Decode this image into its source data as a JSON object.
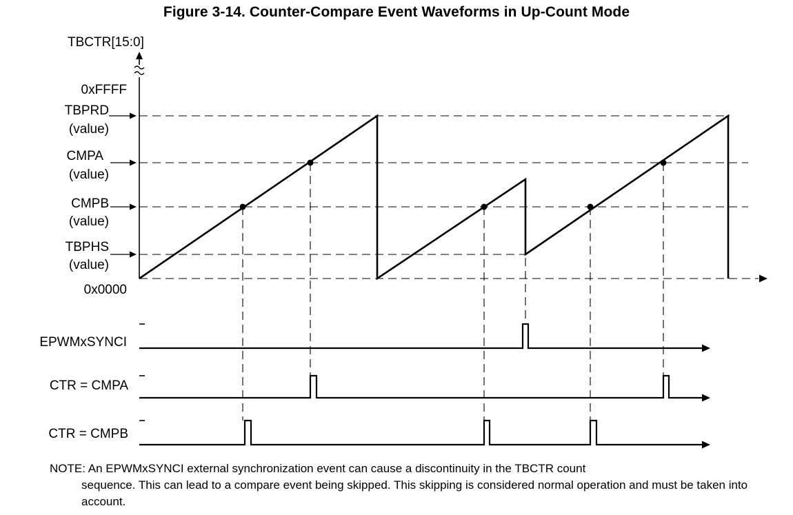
{
  "title": "Figure 3-14. Counter-Compare Event Waveforms in Up-Count Mode",
  "axis": {
    "y_label": "TBCTR[15:0]",
    "levels": {
      "max": "0xFFFF",
      "tbprd": "TBPRD",
      "cmpa": "CMPA",
      "cmpb": "CMPB",
      "tbphs": "TBPHS",
      "value": "(value)",
      "zero": "0x0000"
    }
  },
  "signals": {
    "sync": "EPWMxSYNCI",
    "cmpa_event": "CTR = CMPA",
    "cmpb_event": "CTR = CMPB"
  },
  "note": {
    "first_line": "NOTE:  An EPWMxSYNCI external synchronization event can cause a discontinuity in the TBCTR count",
    "rest": "sequence. This can lead to a compare event being skipped. This skipping is considered normal operation and must be taken into account."
  },
  "chart_data": {
    "type": "line",
    "title": "Figure 3-14. Counter-Compare Event Waveforms in Up-Count Mode",
    "ylabel": "TBCTR[15:0]",
    "y_levels": [
      "0x0000",
      "TBPHS",
      "CMPB",
      "CMPA",
      "TBPRD",
      "0xFFFF"
    ],
    "description_series": [
      {
        "name": "TBCTR",
        "shape": "sawtooth up-count; second period interrupted by EPWMxSYNCI, counter reloaded with TBPHS"
      },
      {
        "name": "EPWMxSYNCI",
        "pulses": 1
      },
      {
        "name": "CTR = CMPA",
        "pulses": 2
      },
      {
        "name": "CTR = CMPB",
        "pulses": 3
      }
    ]
  }
}
